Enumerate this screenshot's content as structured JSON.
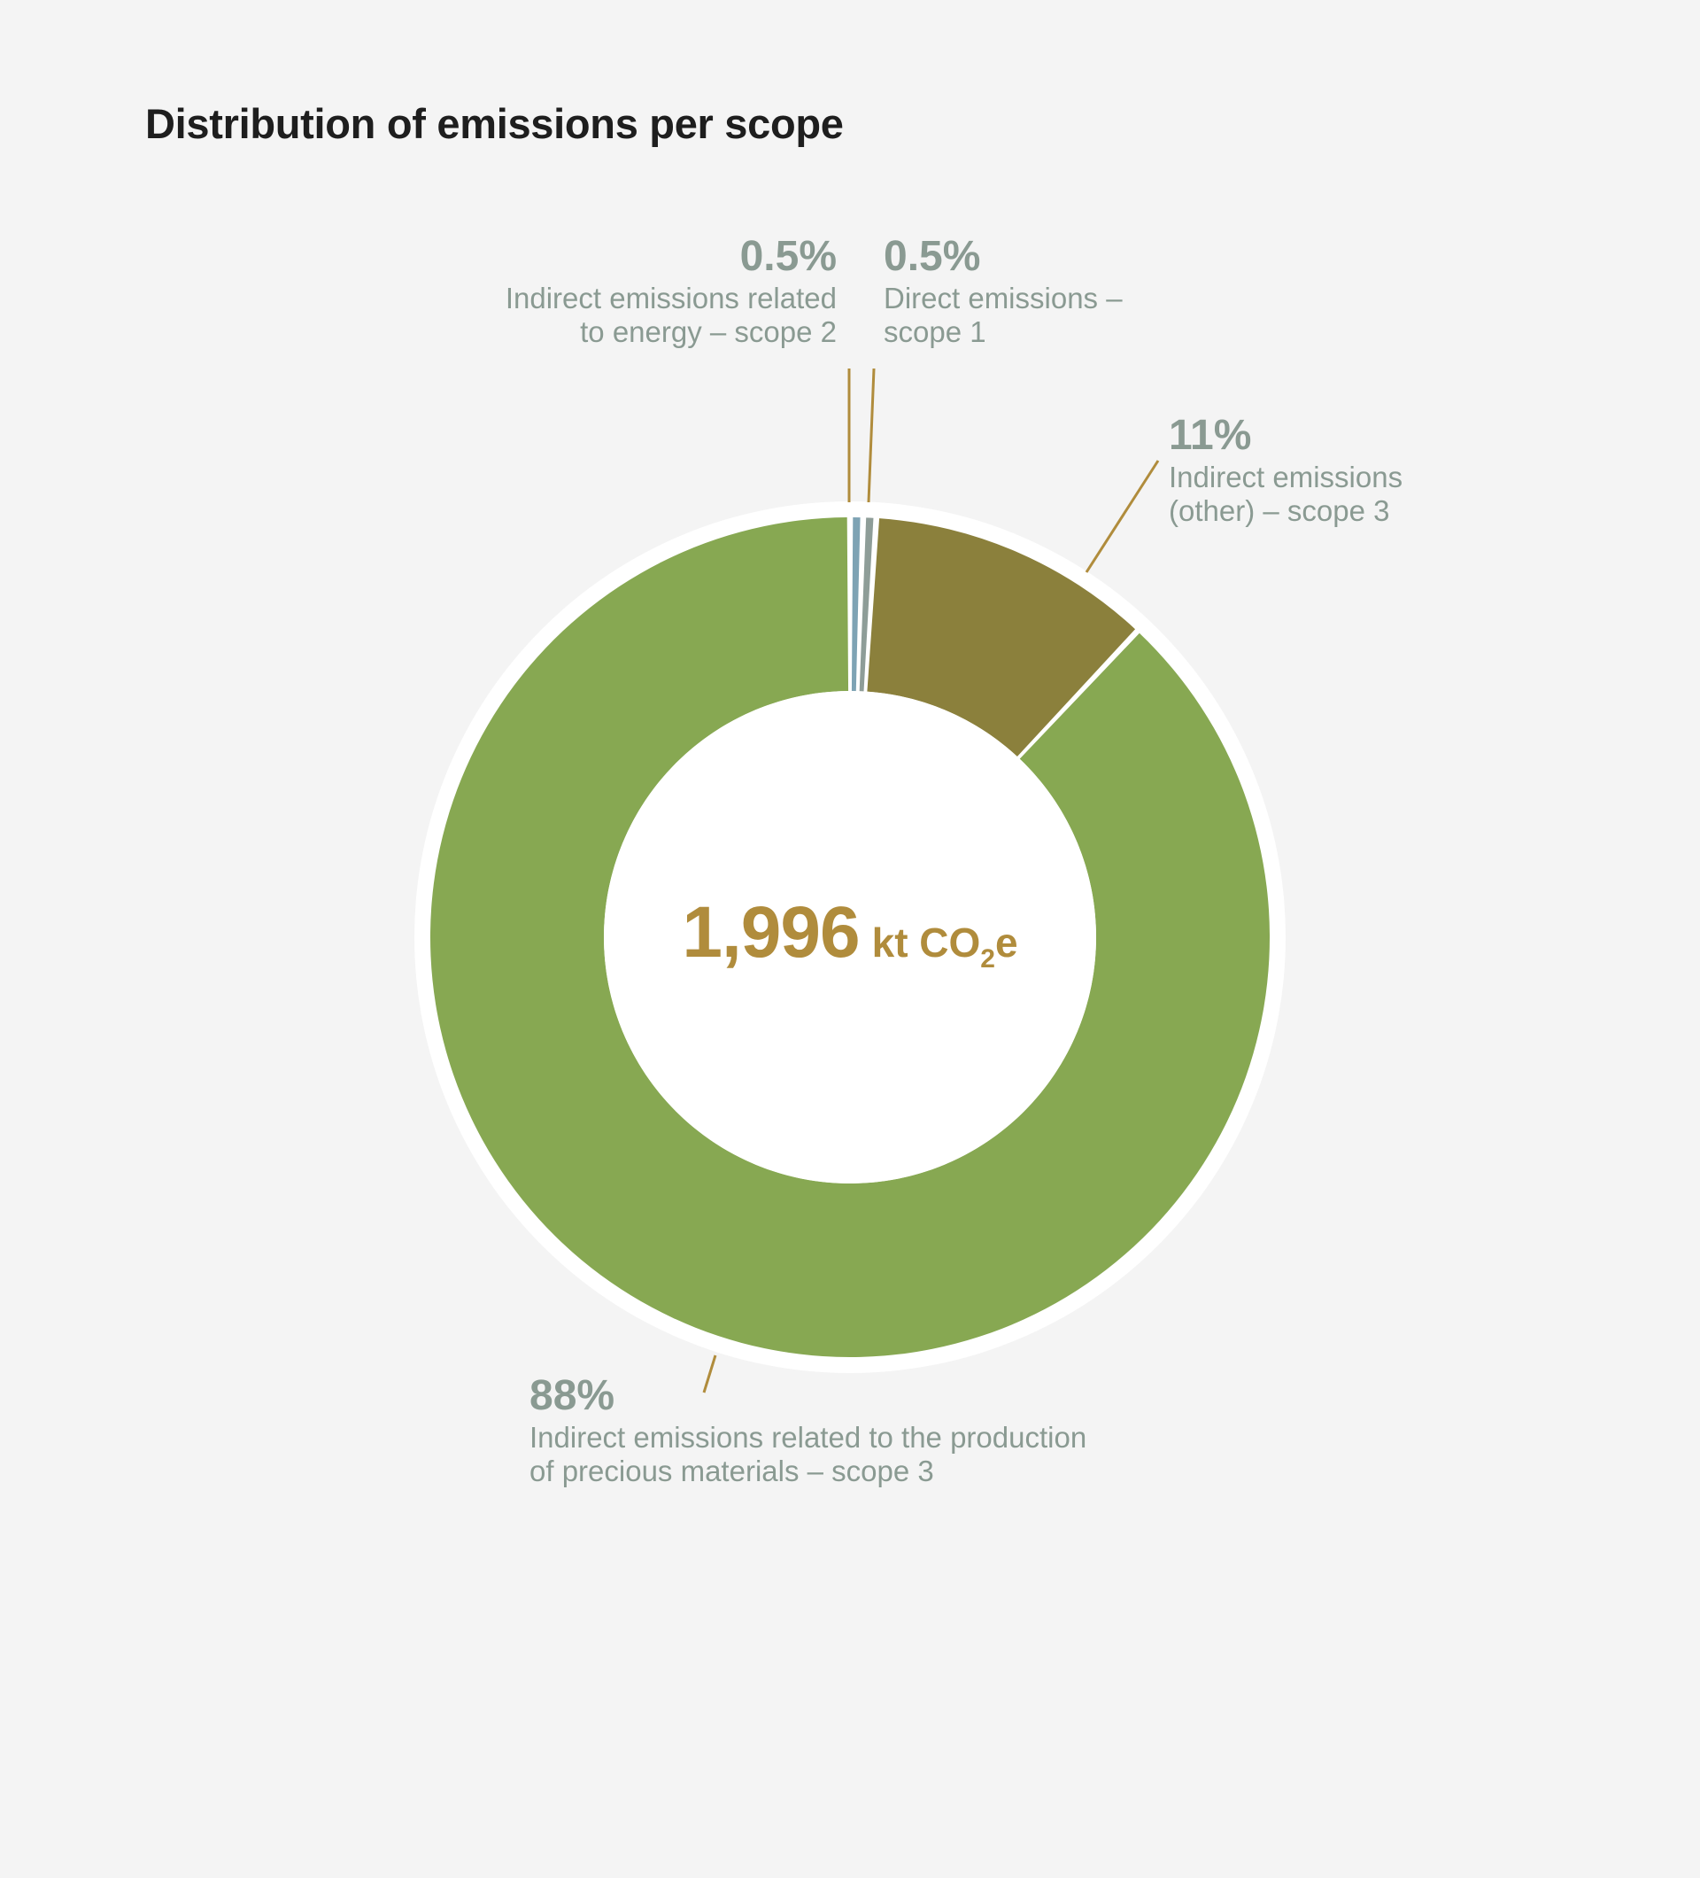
{
  "title": "Distribution of emissions per scope",
  "center": {
    "value": "1,996",
    "unit_prefix": "kt CO",
    "unit_sub": "2",
    "unit_suffix": "e"
  },
  "callouts": {
    "scope2": {
      "pct": "0.5%",
      "line1": "Indirect emissions related",
      "line2": "to energy – scope 2"
    },
    "scope1": {
      "pct": "0.5%",
      "line1": "Direct emissions –",
      "line2": "scope 1"
    },
    "scope3_other": {
      "pct": "11%",
      "line1": "Indirect emissions",
      "line2": "(other) – scope 3"
    },
    "scope3_materials": {
      "pct": "88%",
      "line1": "Indirect emissions related to the production",
      "line2": "of precious materials – scope 3"
    }
  },
  "colors": {
    "background": "#f4f4f4",
    "scope3_materials": "#87a852",
    "scope3_other": "#8b803c",
    "scope2": "#7ea3b4",
    "scope1": "#8e9d98",
    "leader_line": "#b08c3c",
    "label_text": "#8a9a92",
    "total_text": "#b08c3c"
  },
  "chart_data": {
    "type": "pie",
    "variant": "donut",
    "title": "Distribution of emissions per scope",
    "center_label": "1,996 kt CO2e",
    "total": 1996,
    "unit": "kt CO2e",
    "categories": [
      "Indirect emissions related to energy – scope 2",
      "Direct emissions – scope 1",
      "Indirect emissions (other) – scope 3",
      "Indirect emissions related to the production of precious materials – scope 3"
    ],
    "values": [
      0.5,
      0.5,
      11,
      88
    ],
    "value_unit": "%",
    "order": "clockwise from top",
    "legend": "callout labels with leader lines"
  }
}
